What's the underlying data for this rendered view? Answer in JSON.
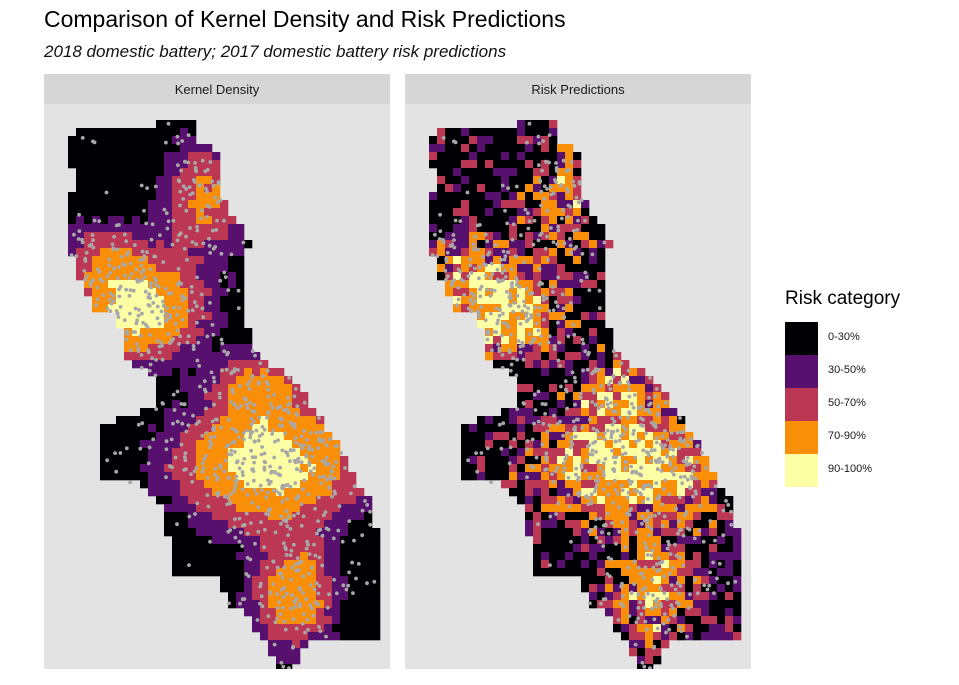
{
  "title": "Comparison of Kernel Density and Risk Predictions",
  "subtitle": "2018 domestic battery; 2017 domestic battery risk predictions",
  "panels": [
    {
      "label": "Kernel Density",
      "model": "kernel"
    },
    {
      "label": "Risk Predictions",
      "model": "risk"
    }
  ],
  "legend": {
    "title": "Risk category",
    "items": [
      {
        "label": "0-30%",
        "color": "#000004"
      },
      {
        "label": "30-50%",
        "color": "#57106e"
      },
      {
        "label": "50-70%",
        "color": "#bc3754"
      },
      {
        "label": "70-90%",
        "color": "#f98e09"
      },
      {
        "label": "90-100%",
        "color": "#fcffa4"
      }
    ]
  },
  "colors": {
    "panel_background": "#e3e3e3",
    "strip_background": "#d6d6d6",
    "point": "#a8a8a8"
  }
}
